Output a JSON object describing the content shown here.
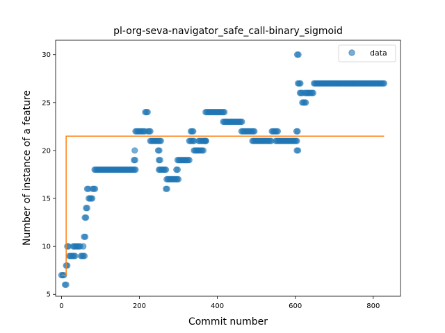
{
  "chart_data": {
    "type": "scatter",
    "title": "pl-org-seva-navigator_safe_call-binary_sigmoid",
    "xlabel": "Commit number",
    "ylabel": "Number of instance of a feature",
    "xlim": [
      -15,
      870
    ],
    "ylim": [
      4.8,
      31.5
    ],
    "xticks": [
      0,
      200,
      400,
      600,
      800
    ],
    "yticks": [
      5,
      10,
      15,
      20,
      25,
      30
    ],
    "grid": false,
    "legend": {
      "position": "top-right",
      "entries": [
        "data"
      ]
    },
    "colors": {
      "data": "#1f77b4",
      "fit": "#ff7f0e"
    },
    "series": [
      {
        "name": "data",
        "kind": "scatter",
        "segments": [
          [
            0,
            8,
            7
          ],
          [
            9,
            12,
            6
          ],
          [
            12,
            16,
            8
          ],
          [
            15,
            20,
            10
          ],
          [
            20,
            35,
            9
          ],
          [
            30,
            50,
            10
          ],
          [
            50,
            60,
            9
          ],
          [
            56,
            58,
            10
          ],
          [
            58,
            61,
            11
          ],
          [
            60,
            63,
            13
          ],
          [
            63,
            66,
            14
          ],
          [
            66,
            70,
            16
          ],
          [
            70,
            80,
            15
          ],
          [
            80,
            88,
            16
          ],
          [
            85,
            190,
            18
          ],
          [
            186,
            190,
            19
          ],
          [
            188,
            190,
            20
          ],
          [
            190,
            215,
            22
          ],
          [
            215,
            222,
            24
          ],
          [
            222,
            230,
            22
          ],
          [
            228,
            255,
            21
          ],
          [
            248,
            252,
            20
          ],
          [
            250,
            253,
            19
          ],
          [
            250,
            270,
            18
          ],
          [
            268,
            272,
            16
          ],
          [
            270,
            300,
            17
          ],
          [
            295,
            300,
            18
          ],
          [
            298,
            330,
            19
          ],
          [
            328,
            340,
            21
          ],
          [
            332,
            340,
            22
          ],
          [
            340,
            365,
            20
          ],
          [
            352,
            370,
            21
          ],
          [
            368,
            372,
            21
          ],
          [
            370,
            420,
            24
          ],
          [
            415,
            465,
            23
          ],
          [
            462,
            495,
            22
          ],
          [
            490,
            540,
            21
          ],
          [
            540,
            555,
            22
          ],
          [
            550,
            605,
            21
          ],
          [
            603,
            606,
            22
          ],
          [
            604,
            607,
            20
          ],
          [
            605,
            608,
            30
          ],
          [
            607,
            615,
            27
          ],
          [
            612,
            620,
            26
          ],
          [
            618,
            628,
            25
          ],
          [
            625,
            648,
            26
          ],
          [
            648,
            828,
            27
          ]
        ]
      },
      {
        "name": "fit",
        "kind": "step-line",
        "points": [
          [
            0,
            7
          ],
          [
            12,
            7
          ],
          [
            12,
            21.5
          ],
          [
            828,
            21.5
          ]
        ]
      }
    ]
  }
}
